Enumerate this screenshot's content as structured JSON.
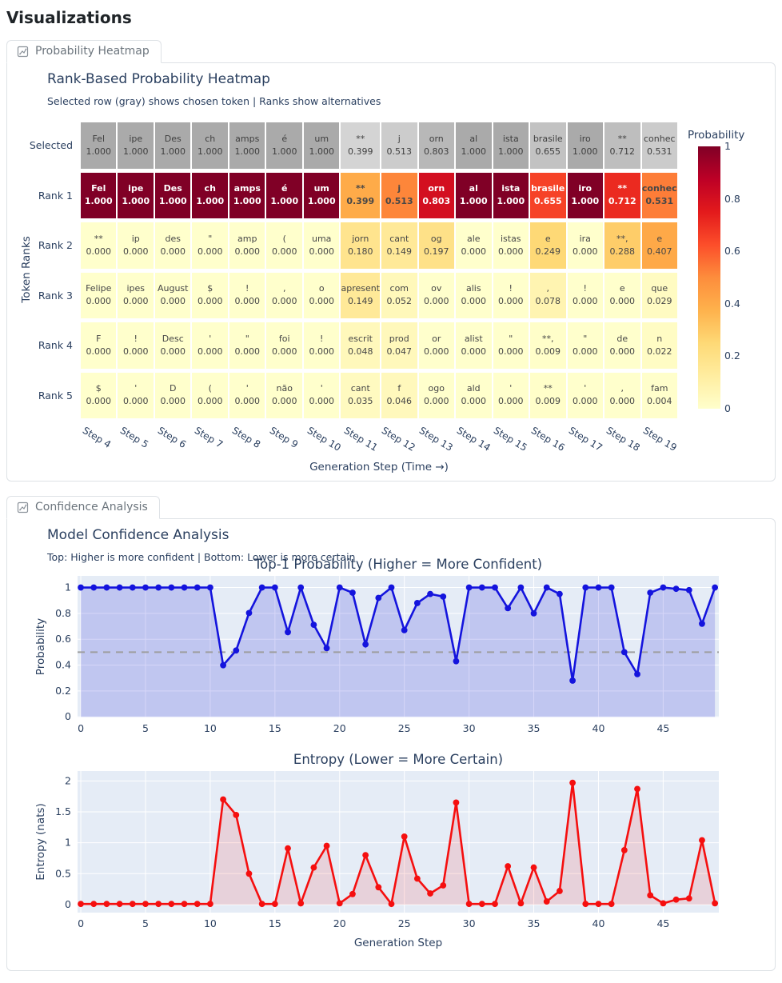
{
  "page_title": "Visualizations",
  "colors": {
    "panel_border": "#dee2e6",
    "tab_text": "#6c757d",
    "figure_text": "#2a3f5f",
    "plot_bg": "#e5ecf6",
    "grid_line": "#ffffff",
    "prob_line": "#1414dd",
    "prob_fill": "rgba(25,25,215,0.18)",
    "entropy_line": "#f50f0f",
    "entropy_fill": "rgba(245,15,15,0.12)",
    "refline": "#9e9e9e"
  },
  "panels": {
    "heatmap": {
      "tab_label": "Probability Heatmap",
      "title": "Rank-Based Probability Heatmap",
      "subtitle": "Selected row (gray) shows chosen token | Ranks show alternatives"
    },
    "confidence": {
      "tab_label": "Confidence Analysis",
      "title": "Model Confidence Analysis",
      "subtitle": "Top: Higher is more confident | Bottom: Lower is more certain"
    }
  },
  "chart_data": [
    {
      "type": "heatmap",
      "title": "Rank-Based Probability Heatmap",
      "xlabel": "Generation Step (Time →)",
      "ylabel": "Token Ranks",
      "colormap": "YlOrRd",
      "selected_row_colormap": "Greys",
      "colorbar_title": "Probability",
      "colorbar_ticks": [
        "1",
        "0.8",
        "0.6",
        "0.4",
        "0.2",
        "0"
      ],
      "columns": [
        "Step 4",
        "Step 5",
        "Step 6",
        "Step 7",
        "Step 8",
        "Step 9",
        "Step 10",
        "Step 11",
        "Step 12",
        "Step 13",
        "Step 14",
        "Step 15",
        "Step 16",
        "Step 17",
        "Step 18",
        "Step 19"
      ],
      "rows": [
        {
          "label": "Selected",
          "scheme": "gray",
          "bold": false,
          "tokens": [
            "Fel",
            "ipe",
            "Des",
            "ch",
            "amps",
            "é",
            "um",
            "**",
            "j",
            "orn",
            "al",
            "ista",
            "brasile",
            "iro",
            "**",
            "conhec"
          ],
          "values": [
            1.0,
            1.0,
            1.0,
            1.0,
            1.0,
            1.0,
            1.0,
            0.399,
            0.513,
            0.803,
            1.0,
            1.0,
            0.655,
            1.0,
            0.712,
            0.531
          ]
        },
        {
          "label": "Rank 1",
          "scheme": "ylorrd",
          "bold": true,
          "tokens": [
            "Fel",
            "ipe",
            "Des",
            "ch",
            "amps",
            "é",
            "um",
            "**",
            "j",
            "orn",
            "al",
            "ista",
            "brasile",
            "iro",
            "**",
            "conhec"
          ],
          "values": [
            1.0,
            1.0,
            1.0,
            1.0,
            1.0,
            1.0,
            1.0,
            0.399,
            0.513,
            0.803,
            1.0,
            1.0,
            0.655,
            1.0,
            0.712,
            0.531
          ]
        },
        {
          "label": "Rank 2",
          "scheme": "ylorrd",
          "bold": false,
          "tokens": [
            "**",
            "ip",
            "des",
            "\"",
            "amp",
            "(",
            "uma",
            "jorn",
            "cant",
            "og",
            "ale",
            "istas",
            "e",
            "ira",
            "**,",
            "e"
          ],
          "values": [
            0.0,
            0.0,
            0.0,
            0.0,
            0.0,
            0.0,
            0.0,
            0.18,
            0.149,
            0.197,
            0.0,
            0.0,
            0.249,
            0.0,
            0.288,
            0.407
          ]
        },
        {
          "label": "Rank 3",
          "scheme": "ylorrd",
          "bold": false,
          "tokens": [
            "Felipe",
            "ipes",
            "August",
            "$",
            "!",
            ",",
            "o",
            "apresent",
            "com",
            "ov",
            "alis",
            "!",
            ",",
            "!",
            "e",
            "que"
          ],
          "values": [
            0.0,
            0.0,
            0.0,
            0.0,
            0.0,
            0.0,
            0.0,
            0.149,
            0.052,
            0.0,
            0.0,
            0.0,
            0.078,
            0.0,
            0.0,
            0.029
          ]
        },
        {
          "label": "Rank 4",
          "scheme": "ylorrd",
          "bold": false,
          "tokens": [
            "F",
            "!",
            "Desc",
            "'",
            "\"",
            "foi",
            "!",
            "escrit",
            "prod",
            "or",
            "alist",
            "\"",
            "**,",
            "\"",
            "de",
            "n"
          ],
          "values": [
            0.0,
            0.0,
            0.0,
            0.0,
            0.0,
            0.0,
            0.0,
            0.048,
            0.047,
            0.0,
            0.0,
            0.0,
            0.009,
            0.0,
            0.0,
            0.022
          ]
        },
        {
          "label": "Rank 5",
          "scheme": "ylorrd",
          "bold": false,
          "tokens": [
            "$",
            "'",
            "D",
            "(",
            "'",
            "não",
            "'",
            "cant",
            "f",
            "ogo",
            "ald",
            "'",
            "**",
            "'",
            ",",
            "fam"
          ],
          "values": [
            0.0,
            0.0,
            0.0,
            0.0,
            0.0,
            0.0,
            0.0,
            0.035,
            0.046,
            0.0,
            0.0,
            0.0,
            0.009,
            0.0,
            0.0,
            0.004
          ]
        }
      ]
    },
    {
      "type": "line",
      "title": "Top-1 Probability (Higher = More Confident)",
      "xlabel": "",
      "ylabel": "Probability",
      "legend_position": "none",
      "grid": true,
      "xlim": [
        -0.25,
        49.3
      ],
      "ylim": [
        -0.005,
        1.09
      ],
      "xticks": [
        0,
        5,
        10,
        15,
        20,
        25,
        30,
        35,
        40,
        45
      ],
      "yticks": [
        0,
        0.2,
        0.4,
        0.6,
        0.8,
        1
      ],
      "refline_y": 0.5,
      "x": [
        0,
        1,
        2,
        3,
        4,
        5,
        6,
        7,
        8,
        9,
        10,
        11,
        12,
        13,
        14,
        15,
        16,
        17,
        18,
        19,
        20,
        21,
        22,
        23,
        24,
        25,
        26,
        27,
        28,
        29,
        30,
        31,
        32,
        33,
        34,
        35,
        36,
        37,
        38,
        39,
        40,
        41,
        42,
        43,
        44,
        45,
        46,
        47,
        48,
        49
      ],
      "y": [
        1.0,
        1.0,
        1.0,
        1.0,
        1.0,
        1.0,
        1.0,
        1.0,
        1.0,
        1.0,
        1.0,
        0.399,
        0.513,
        0.803,
        1.0,
        1.0,
        0.655,
        1.0,
        0.712,
        0.531,
        1.0,
        0.96,
        0.56,
        0.92,
        1.0,
        0.67,
        0.88,
        0.95,
        0.93,
        0.43,
        1.0,
        1.0,
        1.0,
        0.84,
        1.0,
        0.8,
        1.0,
        0.95,
        0.28,
        1.0,
        1.0,
        1.0,
        0.5,
        0.33,
        0.96,
        1.0,
        0.99,
        0.98,
        0.72,
        1.0
      ]
    },
    {
      "type": "line",
      "title": "Entropy (Lower = More Certain)",
      "xlabel": "Generation Step",
      "ylabel": "Entropy (nats)",
      "legend_position": "none",
      "grid": true,
      "xlim": [
        -0.25,
        49.3
      ],
      "ylim": [
        -0.13,
        2.16
      ],
      "xticks": [
        0,
        5,
        10,
        15,
        20,
        25,
        30,
        35,
        40,
        45
      ],
      "yticks": [
        0,
        0.5,
        1,
        1.5,
        2
      ],
      "x": [
        0,
        1,
        2,
        3,
        4,
        5,
        6,
        7,
        8,
        9,
        10,
        11,
        12,
        13,
        14,
        15,
        16,
        17,
        18,
        19,
        20,
        21,
        22,
        23,
        24,
        25,
        26,
        27,
        28,
        29,
        30,
        31,
        32,
        33,
        34,
        35,
        36,
        37,
        38,
        39,
        40,
        41,
        42,
        43,
        44,
        45,
        46,
        47,
        48,
        49
      ],
      "y": [
        0.01,
        0.01,
        0.01,
        0.01,
        0.01,
        0.01,
        0.01,
        0.01,
        0.01,
        0.01,
        0.01,
        1.7,
        1.45,
        0.5,
        0.01,
        0.01,
        0.91,
        0.02,
        0.6,
        0.95,
        0.02,
        0.17,
        0.8,
        0.28,
        0.01,
        1.1,
        0.42,
        0.18,
        0.31,
        1.65,
        0.01,
        0.01,
        0.01,
        0.62,
        0.02,
        0.6,
        0.05,
        0.22,
        1.97,
        0.01,
        0.01,
        0.01,
        0.88,
        1.87,
        0.15,
        0.02,
        0.08,
        0.1,
        1.04,
        0.02
      ]
    }
  ]
}
